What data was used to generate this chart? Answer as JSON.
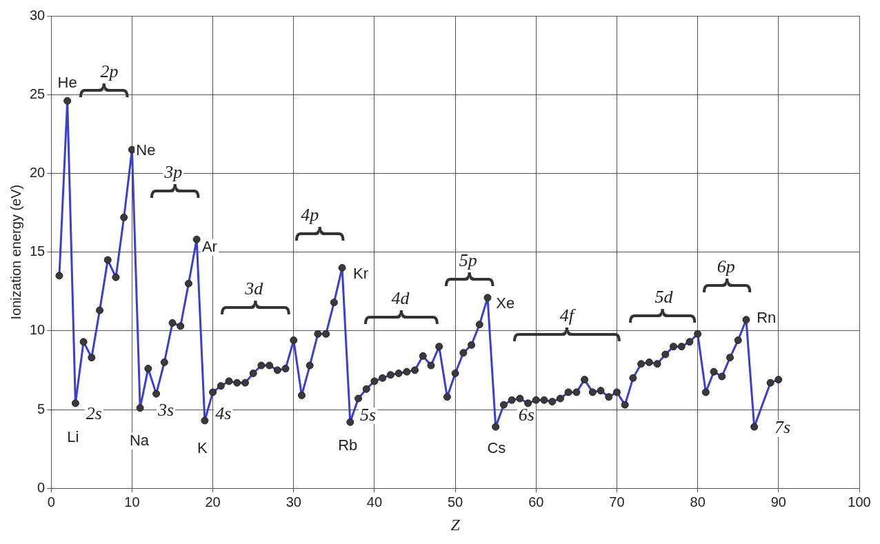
{
  "chart_data": {
    "type": "line",
    "xlabel": "Z",
    "ylabel": "Ionization energy (eV)",
    "x": [
      1,
      2,
      3,
      4,
      5,
      6,
      7,
      8,
      9,
      10,
      11,
      12,
      13,
      14,
      15,
      16,
      17,
      18,
      19,
      20,
      21,
      22,
      23,
      24,
      25,
      26,
      27,
      28,
      29,
      30,
      31,
      32,
      33,
      34,
      35,
      36,
      37,
      38,
      39,
      40,
      41,
      42,
      43,
      44,
      45,
      46,
      47,
      48,
      49,
      50,
      51,
      52,
      53,
      54,
      55,
      56,
      57,
      58,
      59,
      60,
      61,
      62,
      63,
      64,
      65,
      66,
      67,
      68,
      69,
      70,
      71,
      72,
      73,
      74,
      75,
      76,
      77,
      78,
      79,
      80,
      81,
      82,
      83,
      84,
      85,
      86,
      87,
      88,
      89,
      90
    ],
    "series": [
      {
        "color": "#3b3fd0",
        "values": [
          13.5,
          24.6,
          5.4,
          9.3,
          8.3,
          11.3,
          14.5,
          13.4,
          17.2,
          21.5,
          5.1,
          7.6,
          6.0,
          8.0,
          10.5,
          10.3,
          13.0,
          15.8,
          4.3,
          6.1,
          6.5,
          6.8,
          6.7,
          6.7,
          7.3,
          7.8,
          7.8,
          7.5,
          7.6,
          9.4,
          5.9,
          7.8,
          9.8,
          9.8,
          11.8,
          14.0,
          4.2,
          5.7,
          6.3,
          6.8,
          7.0,
          7.2,
          7.3,
          7.4,
          7.5,
          8.4,
          7.8,
          9.0,
          5.8,
          7.3,
          8.6,
          9.1,
          10.4,
          12.1,
          3.9,
          5.3,
          5.6,
          5.7,
          5.4,
          5.6,
          5.6,
          5.5,
          5.7,
          6.1,
          6.1,
          6.9,
          6.1,
          6.2,
          5.8,
          6.1,
          5.3,
          7.0,
          7.9,
          8.0,
          7.9,
          8.5,
          9.0,
          9.0,
          9.3,
          9.8,
          6.1,
          7.4,
          7.1,
          8.3,
          9.4,
          10.7,
          3.9,
          null,
          6.7,
          6.9
        ]
      }
    ],
    "xlim": [
      0,
      100
    ],
    "xticks": [
      0,
      10,
      20,
      30,
      40,
      50,
      60,
      70,
      80,
      90,
      100
    ],
    "ylim": [
      0,
      30
    ],
    "yticks": [
      0,
      5,
      10,
      15,
      20,
      25,
      30
    ],
    "grid": true,
    "marker": "circle",
    "line_style": "solid",
    "legend": false,
    "annotations": [
      "He",
      "2p",
      "Ne",
      "Li",
      "2s",
      "Na",
      "3s",
      "3p",
      "Ar",
      "K",
      "4s",
      "3d",
      "4p",
      "Kr",
      "Rb",
      "5s",
      "4d",
      "5p",
      "Xe",
      "Cs",
      "6s",
      "4f",
      "5d",
      "6p",
      "Rn",
      "7s"
    ]
  }
}
